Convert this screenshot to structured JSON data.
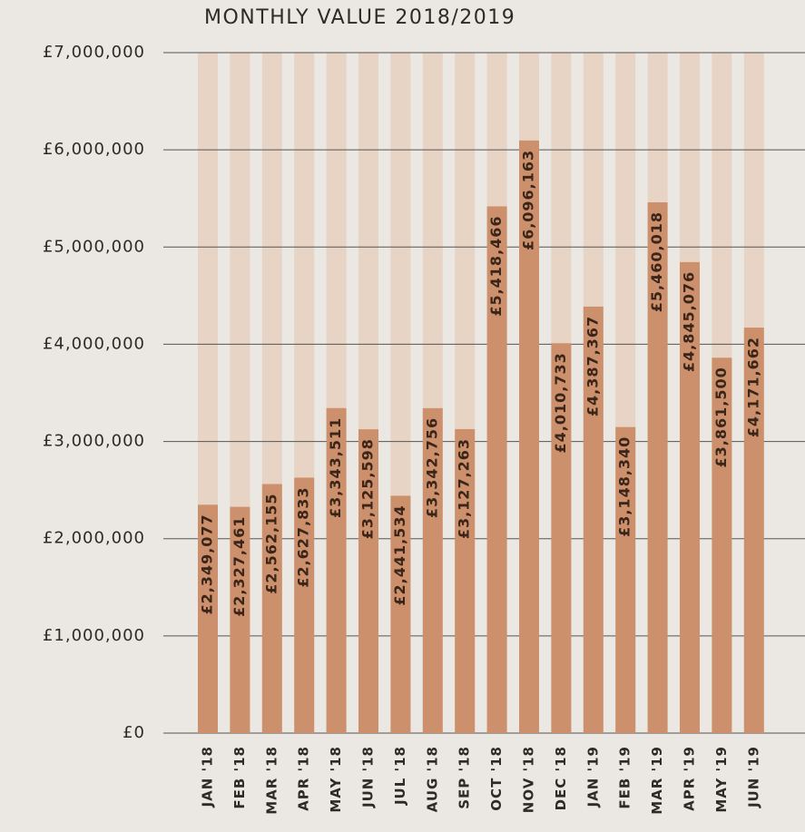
{
  "chart_data": {
    "type": "bar",
    "title": "MONTHLY VALUE 2018/2019",
    "categories": [
      "JAN '18",
      "FEB '18",
      "MAR '18",
      "APR '18",
      "MAY '18",
      "JUN '18",
      "JUL '18",
      "AUG '18",
      "SEP '18",
      "OCT '18",
      "NOV '18",
      "DEC '18",
      "JAN '19",
      "FEB '19",
      "MAR '19",
      "APR '19",
      "MAY '19",
      "JUN '19"
    ],
    "values": [
      2349077,
      2327461,
      2562155,
      2627833,
      3343511,
      3125598,
      2441534,
      3342756,
      3127263,
      5418466,
      6096163,
      4010733,
      4387367,
      3148340,
      5460018,
      4845076,
      3861500,
      4171662
    ],
    "value_labels": [
      "£2,349,077",
      "£2,327,461",
      "£2,562,155",
      "£2,627,833",
      "£3,343,511",
      "£3,125,598",
      "£2,441,534",
      "£3,342,756",
      "£3,127,263",
      "£5,418,466",
      "£6,096,163",
      "£4,010,733",
      "£4,387,367",
      "£3,148,340",
      "£5,460,018",
      "£4,845,076",
      "£3,861,500",
      "£4,171,662"
    ],
    "color": "#cc906c",
    "ylim": [
      0,
      7000000
    ],
    "yticks": [
      {
        "value": 0,
        "label": "£0"
      },
      {
        "value": 1000000,
        "label": "£1,000,000"
      },
      {
        "value": 2000000,
        "label": "£2,000,000"
      },
      {
        "value": 3000000,
        "label": "£3,000,000"
      },
      {
        "value": 4000000,
        "label": "£4,000,000"
      },
      {
        "value": 5000000,
        "label": "£5,000,000"
      },
      {
        "value": 6000000,
        "label": "£6,000,000"
      },
      {
        "value": 7000000,
        "label": "£7,000,000"
      }
    ],
    "grid": true
  }
}
